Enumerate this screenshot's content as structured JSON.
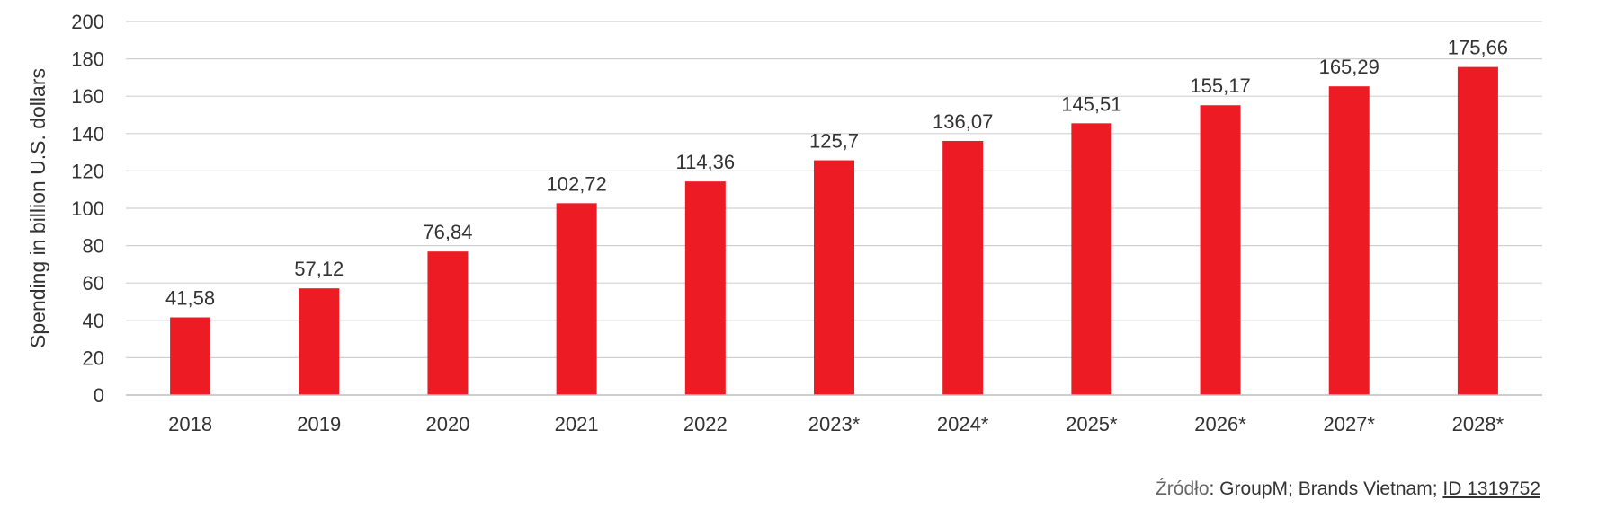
{
  "chart_data": {
    "type": "bar",
    "categories": [
      "2018",
      "2019",
      "2020",
      "2021",
      "2022",
      "2023*",
      "2024*",
      "2025*",
      "2026*",
      "2027*",
      "2028*"
    ],
    "values": [
      41.58,
      57.12,
      76.84,
      102.72,
      114.36,
      125.7,
      136.07,
      145.51,
      155.17,
      165.29,
      175.66
    ],
    "value_labels": [
      "41,58",
      "57,12",
      "76,84",
      "102,72",
      "114,36",
      "125,7",
      "136,07",
      "145,51",
      "155,17",
      "165,29",
      "175,66"
    ],
    "ylabel": "Spending in billion U.S. dollars",
    "ylim": [
      0,
      200
    ],
    "yticks": [
      0,
      20,
      40,
      60,
      80,
      100,
      120,
      140,
      160,
      180,
      200
    ],
    "grid": true,
    "bar_color": "#ed1c24",
    "grid_color": "#d0d0d0"
  },
  "source": {
    "label": "Źródło",
    "text": ": GroupM; Brands Vietnam; ",
    "id": "ID 1319752"
  }
}
